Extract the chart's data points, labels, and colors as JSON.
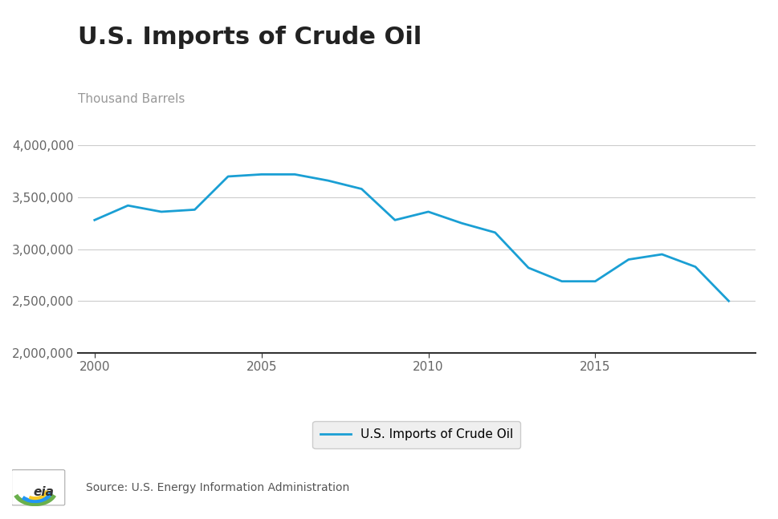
{
  "title": "U.S. Imports of Crude Oil",
  "ylabel": "Thousand Barrels",
  "source": "Source: U.S. Energy Information Administration",
  "legend_label": "U.S. Imports of Crude Oil",
  "line_color": "#1a9fd4",
  "background_color": "#ffffff",
  "years": [
    2000,
    2001,
    2002,
    2003,
    2004,
    2005,
    2006,
    2007,
    2008,
    2009,
    2010,
    2011,
    2012,
    2013,
    2014,
    2015,
    2016,
    2017,
    2018,
    2019
  ],
  "values": [
    3280000,
    3420000,
    3360000,
    3380000,
    3700000,
    3720000,
    3720000,
    3660000,
    3580000,
    3280000,
    3360000,
    3250000,
    3160000,
    2820000,
    2690000,
    2690000,
    2900000,
    2950000,
    2830000,
    2500000
  ],
  "ylim": [
    2000000,
    4000000
  ],
  "yticks": [
    2000000,
    2500000,
    3000000,
    3500000,
    4000000
  ],
  "xticks": [
    2000,
    2005,
    2010,
    2015
  ],
  "title_fontsize": 22,
  "ylabel_fontsize": 11,
  "tick_fontsize": 11,
  "line_width": 2.0,
  "title_color": "#222222",
  "ylabel_color": "#999999",
  "tick_color": "#666666",
  "grid_color": "#cccccc",
  "spine_color": "#333333",
  "legend_bg": "#efefef",
  "legend_edge": "#cccccc",
  "source_color": "#555555",
  "source_fontsize": 10
}
